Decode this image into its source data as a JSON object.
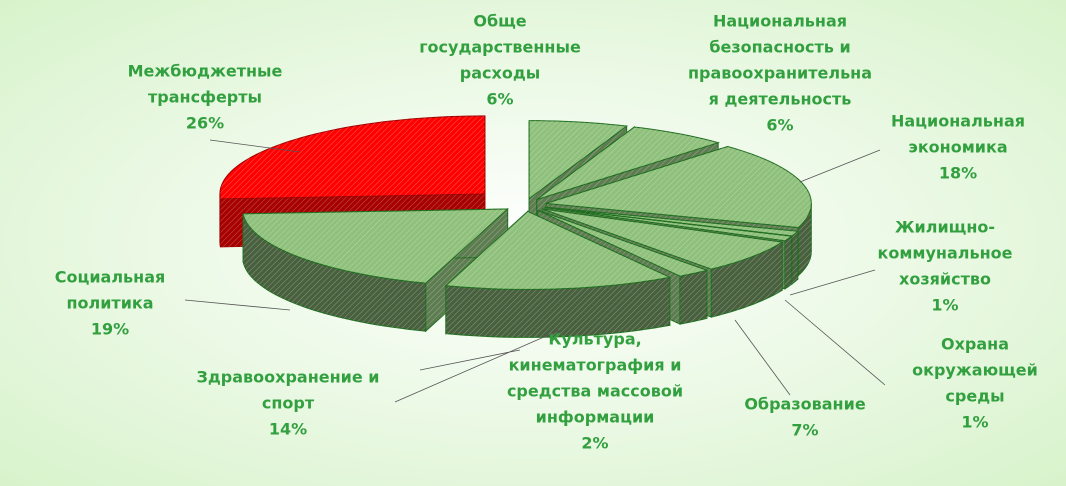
{
  "chart_data": {
    "type": "pie3d",
    "categories": [
      [
        "Обще",
        "государственные",
        "расходы"
      ],
      [
        "Национальная",
        "безопасность и",
        "правоохранительна",
        "я деятельность"
      ],
      [
        "Национальная",
        "экономика"
      ],
      [
        "Жилищно-",
        "коммунальное",
        "хозяйство"
      ],
      [
        "Охрана",
        "окружающей",
        "среды"
      ],
      [
        "Образование"
      ],
      [
        "Культура,",
        "кинематография и",
        "средства массовой",
        "информации"
      ],
      [
        "Здравоохранение и",
        "спорт"
      ],
      [
        "Социальная",
        "политика"
      ],
      [
        "Межбюджетные",
        "трансферты"
      ]
    ],
    "values": [
      6,
      6,
      18,
      1,
      1,
      7,
      2,
      14,
      19,
      26
    ],
    "value_labels": [
      "6%",
      "6%",
      "18%",
      "1%",
      "1%",
      "7%",
      "2%",
      "14%",
      "19%",
      "26%"
    ],
    "colors": [
      "#8fc07c",
      "#8fc07c",
      "#8fc07c",
      "#8fc07c",
      "#8fc07c",
      "#8fc07c",
      "#8fc07c",
      "#8fc07c",
      "#8fc07c",
      "#ff0000"
    ]
  }
}
